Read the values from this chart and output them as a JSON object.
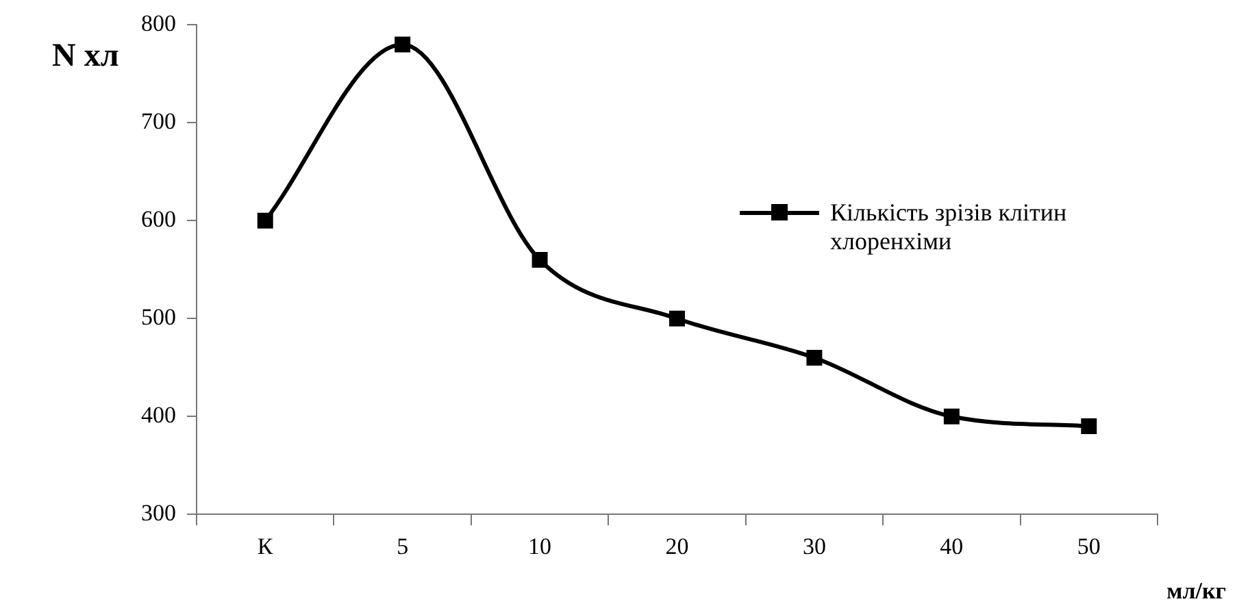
{
  "chart_data": {
    "type": "line",
    "ylabel": "N хл",
    "xlabel": "мл/кг",
    "categories": [
      "К",
      "5",
      "10",
      "20",
      "30",
      "40",
      "50"
    ],
    "series": [
      {
        "name": "Кількість зрізів клітин хлоренхіми",
        "color": "#000000",
        "values": [
          600,
          780,
          560,
          500,
          460,
          400,
          390
        ]
      }
    ],
    "ylim": [
      300,
      800
    ],
    "yticks": [
      300,
      400,
      500,
      600,
      700,
      800
    ],
    "grid": false,
    "legend": "right",
    "marker": "square",
    "line_style": "solid"
  }
}
